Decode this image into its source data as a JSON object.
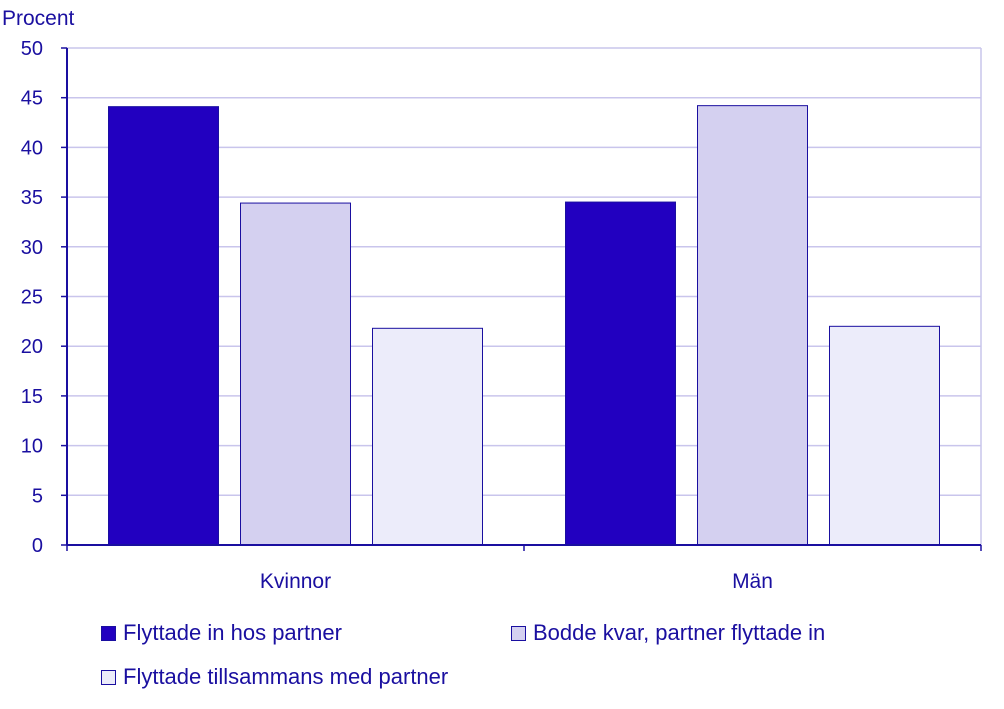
{
  "chart_data": {
    "type": "bar",
    "ylabel": "Procent",
    "ylim": [
      0,
      50
    ],
    "yticks": [
      0,
      5,
      10,
      15,
      20,
      25,
      30,
      35,
      40,
      45,
      50
    ],
    "grid": true,
    "categories": [
      "Kvinnor",
      "Män"
    ],
    "series": [
      {
        "name": "Flyttade in hos partner",
        "color": "#2200c0",
        "values": [
          44.1,
          34.5
        ]
      },
      {
        "name": "Bodde kvar, partner flyttade in",
        "color": "#d4d0f0",
        "values": [
          34.4,
          44.2
        ]
      },
      {
        "name": "Flyttade tillsammans med partner",
        "color": "#ececfa",
        "values": [
          21.8,
          22.0
        ]
      }
    ],
    "legend_position": "bottom"
  }
}
